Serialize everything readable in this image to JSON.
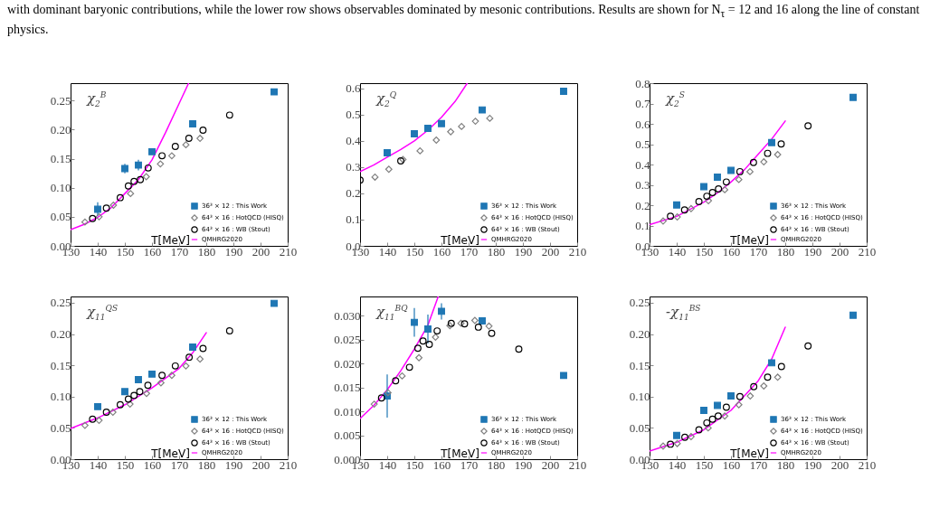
{
  "chart_data": [
    {
      "type": "scatter",
      "xlabel": "T[MeV]",
      "xlim": [
        130,
        210
      ],
      "xticks": [
        130,
        140,
        150,
        160,
        170,
        180,
        190,
        200,
        210
      ],
      "ylim": [
        0,
        0.28
      ],
      "yticks": [
        {
          "value": 0,
          "label": "0.00"
        },
        {
          "value": 0.05,
          "label": "0.05"
        },
        {
          "value": 0.1,
          "label": "0.10"
        },
        {
          "value": 0.15,
          "label": "0.15"
        },
        {
          "value": 0.2,
          "label": "0.20"
        },
        {
          "value": 0.25,
          "label": "0.25"
        }
      ],
      "legend": "bottom right",
      "annotations": [
        "χ$_{2}$$^{B}$",
        "with dominant baryonic contributions, while the lower row shows observables dominated by mesonic contributions. Results are shown for N$_{τ}$ = 12 and 16 along the line of constant physics."
      ],
      "series": [
        {
          "name": "36³ × 12 : This Work",
          "type": "scatter",
          "marker": "square",
          "color": "#1f77b4",
          "x": [
            140,
            150,
            155,
            160,
            175,
            205
          ],
          "values": [
            0.063,
            0.133,
            0.139,
            0.162,
            0.21,
            0.265
          ],
          "errors": [
            0.012,
            0.008,
            0.009,
            null,
            null,
            null
          ]
        },
        {
          "name": "64³ × 16 : HotQCD (HISQ)",
          "type": "scatter",
          "marker": "diamond",
          "color": "#808080",
          "x": [
            135.3,
            140.5,
            145.8,
            152.1,
            157.9,
            163.1,
            167.3,
            172.5,
            177.7
          ],
          "values": [
            0.041,
            0.05,
            0.07,
            0.09,
            0.119,
            0.141,
            0.155,
            0.174,
            0.185
          ]
        },
        {
          "name": "64³ × 16 : WB (Stout)",
          "type": "scatter",
          "marker": "circle",
          "color": "#000000",
          "x": [
            138.1,
            143.2,
            148.3,
            151.3,
            153.4,
            155.7,
            158.6,
            163.7,
            168.6,
            173.6,
            178.8,
            188.6
          ],
          "values": [
            0.047,
            0.065,
            0.083,
            0.103,
            0.111,
            0.114,
            0.134,
            0.155,
            0.171,
            0.185,
            0.199,
            0.225
          ]
        },
        {
          "name": "QMHRG2020",
          "type": "line",
          "color": "#ff00ff",
          "x": [
            130,
            135,
            140,
            145,
            150,
            155,
            160,
            165,
            170,
            173.5
          ],
          "values": [
            0.028,
            0.037,
            0.049,
            0.066,
            0.09,
            0.114,
            0.148,
            0.195,
            0.245,
            0.28
          ]
        }
      ]
    },
    {
      "type": "scatter",
      "xlabel": "T[MeV]",
      "xlim": [
        130,
        210
      ],
      "xticks": [
        130,
        140,
        150,
        160,
        170,
        180,
        190,
        200,
        210
      ],
      "ylim": [
        0,
        0.62
      ],
      "yticks": [
        {
          "value": 0,
          "label": "0.0"
        },
        0.1,
        0.2,
        0.3,
        0.4,
        0.5,
        0.6
      ],
      "legend": "bottom right",
      "annotations": [
        "χ$_{2}$$^{Q}$"
      ],
      "series": [
        {
          "name": "36³ × 12 : This Work",
          "type": "scatter",
          "marker": "square",
          "color": "#1f77b4",
          "x": [
            140,
            150,
            155,
            160,
            175,
            205
          ],
          "values": [
            0.355,
            0.427,
            0.448,
            0.466,
            0.518,
            0.589
          ]
        },
        {
          "name": "64³ × 16 : HotQCD (HISQ)",
          "type": "scatter",
          "marker": "diamond",
          "color": "#808080",
          "x": [
            135.5,
            140.6,
            145.8,
            152.1,
            158.1,
            163.4,
            167.4,
            172.5,
            177.8
          ],
          "values": [
            0.262,
            0.292,
            0.329,
            0.362,
            0.403,
            0.435,
            0.455,
            0.475,
            0.486
          ]
        },
        {
          "name": "64³ × 16 : WB (Stout)",
          "type": "scatter",
          "marker": "circle",
          "color": "#000000",
          "x": [
            130,
            145
          ],
          "values": [
            0.251,
            0.324
          ]
        },
        {
          "name": "QMHRG2020",
          "type": "line",
          "color": "#ff00ff",
          "x": [
            130,
            135,
            140,
            145,
            150,
            155,
            160,
            165,
            169.5
          ],
          "values": [
            0.283,
            0.308,
            0.338,
            0.367,
            0.4,
            0.441,
            0.49,
            0.55,
            0.62
          ]
        }
      ]
    },
    {
      "type": "scatter",
      "xlabel": "T[MeV]",
      "xlim": [
        130,
        210
      ],
      "xticks": [
        130,
        140,
        150,
        160,
        170,
        180,
        190,
        200,
        210
      ],
      "ylim": [
        0,
        0.8
      ],
      "yticks": [
        {
          "value": 0,
          "label": "0.0"
        },
        0.1,
        0.2,
        0.3,
        0.4,
        0.5,
        0.6,
        0.7,
        0.8
      ],
      "legend": "bottom right",
      "annotations": [
        "χ$_{2}$$^{S}$"
      ],
      "series": [
        {
          "name": "36³ × 12 : This Work",
          "type": "scatter",
          "marker": "square",
          "color": "#1f77b4",
          "x": [
            140,
            150,
            155,
            160,
            175,
            205
          ],
          "values": [
            0.201,
            0.291,
            0.338,
            0.371,
            0.508,
            0.73
          ]
        },
        {
          "name": "64³ × 16 : HotQCD (HISQ)",
          "type": "scatter",
          "marker": "diamond",
          "color": "#808080",
          "x": [
            135,
            140.2,
            145.3,
            151.7,
            157.7,
            162.9,
            167,
            172.1,
            177.2
          ],
          "values": [
            0.122,
            0.142,
            0.183,
            0.222,
            0.276,
            0.326,
            0.365,
            0.413,
            0.449
          ]
        },
        {
          "name": "64³ × 16 : WB (Stout)",
          "type": "scatter",
          "marker": "circle",
          "color": "#000000",
          "x": [
            137.7,
            142.9,
            148.2,
            151.1,
            153.2,
            155.4,
            158.3,
            163.3,
            168.3,
            173.5,
            178.5,
            188.4
          ],
          "values": [
            0.146,
            0.177,
            0.218,
            0.244,
            0.262,
            0.28,
            0.314,
            0.365,
            0.41,
            0.455,
            0.501,
            0.59
          ]
        },
        {
          "name": "QMHRG2020",
          "type": "line",
          "color": "#ff00ff",
          "x": [
            130,
            140,
            150,
            155,
            160,
            165,
            170,
            175,
            180
          ],
          "values": [
            0.104,
            0.145,
            0.215,
            0.26,
            0.314,
            0.375,
            0.45,
            0.525,
            0.614
          ]
        }
      ]
    },
    {
      "type": "scatter",
      "xlabel": "T[MeV]",
      "xlim": [
        130,
        210
      ],
      "xticks": [
        130,
        140,
        150,
        160,
        170,
        180,
        190,
        200,
        210
      ],
      "ylim": [
        0,
        0.26
      ],
      "yticks": [
        {
          "value": 0,
          "label": "0.00"
        },
        {
          "value": 0.05,
          "label": "0.05"
        },
        {
          "value": 0.1,
          "label": "0.10"
        },
        {
          "value": 0.15,
          "label": "0.15"
        },
        {
          "value": 0.2,
          "label": "0.20"
        },
        {
          "value": 0.25,
          "label": "0.25"
        }
      ],
      "legend": "bottom right",
      "annotations": [
        "χ$_{11}$$^{QS}$"
      ],
      "series": [
        {
          "name": "36³ × 12 : This Work",
          "type": "scatter",
          "marker": "square",
          "color": "#1f77b4",
          "x": [
            140,
            150,
            155,
            160,
            175,
            205
          ],
          "values": [
            0.084,
            0.108,
            0.127,
            0.136,
            0.179,
            0.249
          ]
        },
        {
          "name": "64³ × 16 : HotQCD (HISQ)",
          "type": "scatter",
          "marker": "diamond",
          "color": "#808080",
          "x": [
            135.3,
            140.5,
            145.6,
            151.9,
            158,
            163.3,
            167.3,
            172.5,
            177.7
          ],
          "values": [
            0.054,
            0.062,
            0.075,
            0.088,
            0.105,
            0.122,
            0.134,
            0.149,
            0.16
          ]
        },
        {
          "name": "64³ × 16 : WB (Stout)",
          "type": "scatter",
          "marker": "circle",
          "color": "#000000",
          "x": [
            138.1,
            143.2,
            148.3,
            151.3,
            153.4,
            155.5,
            158.5,
            163.7,
            168.6,
            173.7,
            178.8,
            188.6
          ],
          "values": [
            0.064,
            0.075,
            0.087,
            0.096,
            0.102,
            0.108,
            0.118,
            0.134,
            0.149,
            0.163,
            0.177,
            0.205
          ]
        },
        {
          "name": "QMHRG2020",
          "type": "line",
          "color": "#ff00ff",
          "x": [
            130,
            140,
            150,
            160,
            170,
            175,
            180
          ],
          "values": [
            0.049,
            0.066,
            0.087,
            0.114,
            0.145,
            0.17,
            0.202
          ]
        }
      ]
    },
    {
      "type": "scatter",
      "xlabel": "T[MeV]",
      "xlim": [
        130,
        210
      ],
      "xticks": [
        130,
        140,
        150,
        160,
        170,
        180,
        190,
        200,
        210
      ],
      "ylim": [
        0,
        0.034
      ],
      "yticks": [
        {
          "value": 0,
          "label": "0.000"
        },
        {
          "value": 0.005,
          "label": "0.005"
        },
        {
          "value": 0.01,
          "label": "0.010"
        },
        {
          "value": 0.015,
          "label": "0.015"
        },
        {
          "value": 0.02,
          "label": "0.020"
        },
        {
          "value": 0.025,
          "label": "0.025"
        },
        {
          "value": 0.03,
          "label": "0.030"
        }
      ],
      "legend": "bottom right",
      "annotations": [
        "χ$_{11}$$^{BQ}$"
      ],
      "series": [
        {
          "name": "36³ × 12 : This Work",
          "type": "scatter",
          "marker": "square",
          "color": "#1f77b4",
          "x": [
            140,
            150,
            155,
            160,
            175,
            205
          ],
          "values": [
            0.0132,
            0.0286,
            0.0272,
            0.0309,
            0.0289,
            0.0175
          ],
          "errors": [
            0.0045,
            0.003,
            0.003,
            0.0017,
            null,
            null
          ]
        },
        {
          "name": "64³ × 16 : HotQCD (HISQ)",
          "type": "scatter",
          "marker": "diamond",
          "color": "#808080",
          "x": [
            135.2,
            140.3,
            145.5,
            151.7,
            157.8,
            163.1,
            167.2,
            172.3,
            177.5
          ],
          "values": [
            0.0115,
            0.0139,
            0.0174,
            0.0212,
            0.0255,
            0.0279,
            0.0284,
            0.029,
            0.0278
          ]
        },
        {
          "name": "64³ × 16 : WB (Stout)",
          "type": "scatter",
          "marker": "circle",
          "color": "#000000",
          "x": [
            137.9,
            143.1,
            148.2,
            151.3,
            153.2,
            155.5,
            158.4,
            163.6,
            168.5,
            173.6,
            178.5,
            188.5
          ],
          "values": [
            0.0128,
            0.0164,
            0.0192,
            0.0232,
            0.0247,
            0.024,
            0.0268,
            0.0284,
            0.0283,
            0.0276,
            0.0263,
            0.023
          ]
        },
        {
          "name": "QMHRG2020",
          "type": "line",
          "color": "#ff00ff",
          "x": [
            130,
            135,
            140,
            145,
            150,
            155,
            158.8
          ],
          "values": [
            0.0085,
            0.0112,
            0.0145,
            0.0185,
            0.023,
            0.028,
            0.034
          ]
        }
      ]
    },
    {
      "type": "scatter",
      "xlabel": "T[MeV]",
      "xlim": [
        130,
        210
      ],
      "xticks": [
        130,
        140,
        150,
        160,
        170,
        180,
        190,
        200,
        210
      ],
      "ylim": [
        0,
        0.26
      ],
      "yticks": [
        {
          "value": 0,
          "label": "0.00"
        },
        {
          "value": 0.05,
          "label": "0.05"
        },
        {
          "value": 0.1,
          "label": "0.10"
        },
        {
          "value": 0.15,
          "label": "0.15"
        },
        {
          "value": 0.2,
          "label": "0.20"
        },
        {
          "value": 0.25,
          "label": "0.25"
        }
      ],
      "legend": "bottom right",
      "annotations": [
        "-χ$_{11}$$^{BS}$"
      ],
      "series": [
        {
          "name": "36³ × 12 : This Work",
          "type": "scatter",
          "marker": "square",
          "color": "#1f77b4",
          "x": [
            140,
            150,
            155,
            160,
            175,
            205
          ],
          "values": [
            0.038,
            0.078,
            0.086,
            0.101,
            0.154,
            0.23
          ]
        },
        {
          "name": "64³ × 16 : HotQCD (HISQ)",
          "type": "scatter",
          "marker": "diamond",
          "color": "#808080",
          "x": [
            135,
            140.2,
            145.3,
            151.6,
            157.7,
            162.9,
            167.1,
            172.1,
            177.2
          ],
          "values": [
            0.021,
            0.025,
            0.036,
            0.05,
            0.069,
            0.087,
            0.101,
            0.117,
            0.131
          ]
        },
        {
          "name": "64³ × 16 : WB (Stout)",
          "type": "scatter",
          "marker": "circle",
          "color": "#000000",
          "x": [
            137.7,
            143,
            148.2,
            151.1,
            153.2,
            155.3,
            158.3,
            163.3,
            168.4,
            173.5,
            178.6,
            188.4
          ],
          "values": [
            0.024,
            0.035,
            0.047,
            0.058,
            0.064,
            0.069,
            0.083,
            0.1,
            0.116,
            0.131,
            0.148,
            0.181
          ]
        },
        {
          "name": "QMHRG2020",
          "type": "line",
          "color": "#ff00ff",
          "x": [
            130,
            140,
            150,
            160,
            170,
            175,
            180
          ],
          "values": [
            0.013,
            0.027,
            0.047,
            0.078,
            0.125,
            0.16,
            0.211
          ]
        }
      ]
    }
  ]
}
